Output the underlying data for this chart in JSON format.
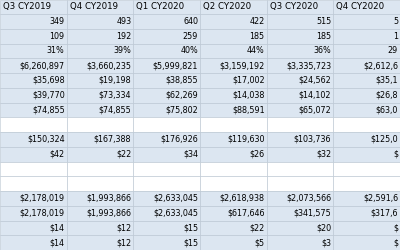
{
  "columns": [
    "Q3 CY2019",
    "Q4 CY2019",
    "Q1 CY2020",
    "Q2 CY2020",
    "Q3 CY2020",
    "Q4 CY2020"
  ],
  "rows": [
    [
      "349",
      "493",
      "640",
      "422",
      "515",
      "5"
    ],
    [
      "109",
      "192",
      "259",
      "185",
      "185",
      "1"
    ],
    [
      "31%",
      "39%",
      "40%",
      "44%",
      "36%",
      "29"
    ],
    [
      "$6,260,897",
      "$3,660,235",
      "$5,999,821",
      "$3,159,192",
      "$3,335,723",
      "$2,612,6"
    ],
    [
      "$35,698",
      "$19,198",
      "$38,855",
      "$17,002",
      "$24,562",
      "$35,1"
    ],
    [
      "$39,770",
      "$73,334",
      "$62,269",
      "$14,038",
      "$14,102",
      "$26,8"
    ],
    [
      "$74,855",
      "$74,855",
      "$75,802",
      "$88,591",
      "$65,072",
      "$63,0"
    ],
    [
      "",
      "",
      "",
      "",
      "",
      ""
    ],
    [
      "$150,324",
      "$167,388",
      "$176,926",
      "$119,630",
      "$103,736",
      "$125,0"
    ],
    [
      "$42",
      "$22",
      "$34",
      "$26",
      "$32",
      "$"
    ],
    [
      "",
      "",
      "",
      "",
      "",
      ""
    ],
    [
      "",
      "",
      "",
      "",
      "",
      ""
    ],
    [
      "$2,178,019",
      "$1,993,866",
      "$2,633,045",
      "$2,618,938",
      "$2,073,566",
      "$2,591,6"
    ],
    [
      "$2,178,019",
      "$1,993,866",
      "$2,633,045",
      "$617,646",
      "$341,575",
      "$317,6"
    ],
    [
      "$14",
      "$12",
      "$15",
      "$22",
      "$20",
      "$"
    ],
    [
      "$14",
      "$12",
      "$15",
      "$5",
      "$3",
      "$"
    ]
  ],
  "header_bg": "#dce6f1",
  "row_bg_light": "#dce6f1",
  "row_bg_white": "#ffffff",
  "header_text": "#000000",
  "cell_text": "#000000",
  "border_color": "#b8c4d0",
  "font_size": 5.8,
  "header_font_size": 6.2,
  "fig_width": 4.0,
  "fig_height": 2.5,
  "dpi": 100
}
